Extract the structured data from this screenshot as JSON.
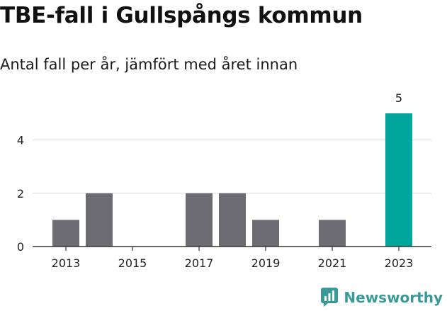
{
  "title": "TBE-fall i Gullspångs kommun",
  "subtitle": "Antal fall per år, jämfört med året innan",
  "brand": {
    "name": "Newsworthy",
    "icon": "newsworthy-logo-icon",
    "color": "#3a9a97"
  },
  "chart_data": {
    "type": "bar",
    "x": [
      2013,
      2014,
      2015,
      2016,
      2017,
      2018,
      2019,
      2020,
      2021,
      2022,
      2023
    ],
    "values": [
      1,
      2,
      0,
      0,
      2,
      2,
      1,
      0,
      1,
      0,
      5
    ],
    "x_tick_labels": [
      "2013",
      "2015",
      "2017",
      "2019",
      "2021",
      "2023"
    ],
    "y_ticks": [
      0,
      2,
      4
    ],
    "ylim": [
      0,
      5.25
    ],
    "grid": true,
    "highlight": {
      "category": 2023,
      "value_label": "5",
      "color": "#00a59b"
    },
    "bar_color": "#6d6c72",
    "xlabel": "",
    "ylabel": ""
  }
}
